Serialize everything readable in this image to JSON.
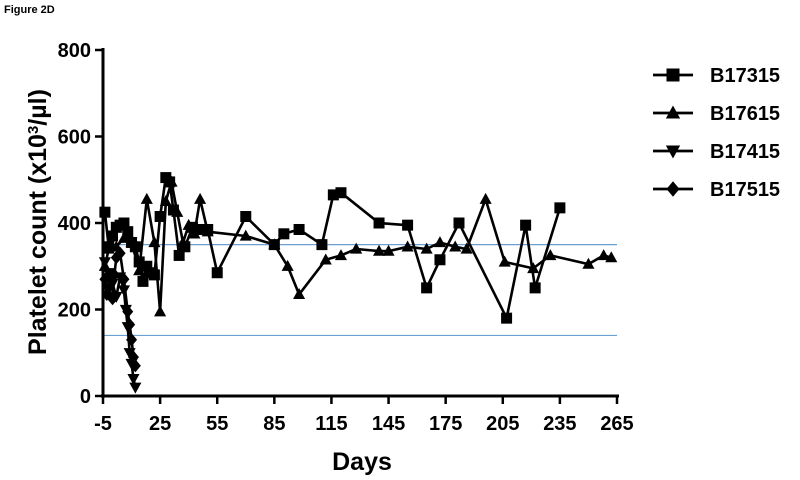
{
  "figure_label": "Figure 2D",
  "chart_data": {
    "type": "line",
    "xlabel": "Days",
    "ylabel_main": "Platelet count (x10",
    "ylabel_sup": "3",
    "ylabel_tail": "/µl)",
    "xlim": [
      -5,
      265
    ],
    "ylim": [
      0,
      800
    ],
    "x_ticks": [
      -5,
      25,
      55,
      85,
      115,
      145,
      175,
      205,
      235,
      265
    ],
    "y_ticks": [
      0,
      200,
      400,
      600,
      800
    ],
    "reference_lines": [
      350,
      140
    ],
    "reference_color": "#6a9fd0",
    "line_color": "#000000",
    "legend_position": "right",
    "series": [
      {
        "name": "B17315",
        "marker": "square",
        "x": [
          -4,
          -2,
          0,
          2,
          4,
          6,
          8,
          10,
          12,
          14,
          16,
          18,
          20,
          22,
          25,
          28,
          30,
          32,
          35,
          38,
          42,
          46,
          50,
          55,
          70,
          85,
          90,
          98,
          110,
          116,
          120,
          140,
          155,
          165,
          172,
          182,
          207,
          217,
          222,
          235
        ],
        "y": [
          425,
          345,
          370,
          390,
          395,
          400,
          380,
          355,
          345,
          310,
          265,
          300,
          285,
          280,
          415,
          505,
          495,
          430,
          325,
          345,
          390,
          385,
          385,
          285,
          415,
          350,
          375,
          385,
          350,
          465,
          470,
          400,
          395,
          250,
          315,
          400,
          180,
          395,
          250,
          435
        ]
      },
      {
        "name": "B17615",
        "marker": "triangle-up",
        "x": [
          -4,
          -2,
          2,
          6,
          10,
          14,
          18,
          22,
          25,
          28,
          31,
          34,
          37,
          40,
          43,
          46,
          50,
          70,
          85,
          92,
          98,
          112,
          120,
          128,
          140,
          145,
          155,
          165,
          172,
          180,
          186,
          196,
          206,
          221,
          230,
          250,
          258,
          262
        ],
        "y": [
          300,
          340,
          345,
          365,
          355,
          290,
          455,
          355,
          195,
          450,
          495,
          425,
          355,
          395,
          375,
          455,
          380,
          370,
          350,
          300,
          235,
          315,
          325,
          340,
          335,
          335,
          345,
          340,
          355,
          345,
          340,
          455,
          310,
          295,
          325,
          305,
          325,
          320
        ]
      },
      {
        "name": "B17415",
        "marker": "triangle-down",
        "x": [
          -4,
          -2,
          0,
          2,
          4,
          6,
          7,
          8,
          9,
          10,
          11,
          12
        ],
        "y": [
          310,
          285,
          260,
          230,
          275,
          245,
          200,
          160,
          100,
          75,
          40,
          20
        ]
      },
      {
        "name": "B17515",
        "marker": "diamond",
        "x": [
          -4,
          -3,
          -2,
          0,
          1,
          2,
          4,
          6,
          8,
          9,
          10,
          11,
          12
        ],
        "y": [
          270,
          235,
          250,
          225,
          280,
          320,
          330,
          270,
          195,
          165,
          130,
          90,
          70
        ]
      }
    ]
  }
}
